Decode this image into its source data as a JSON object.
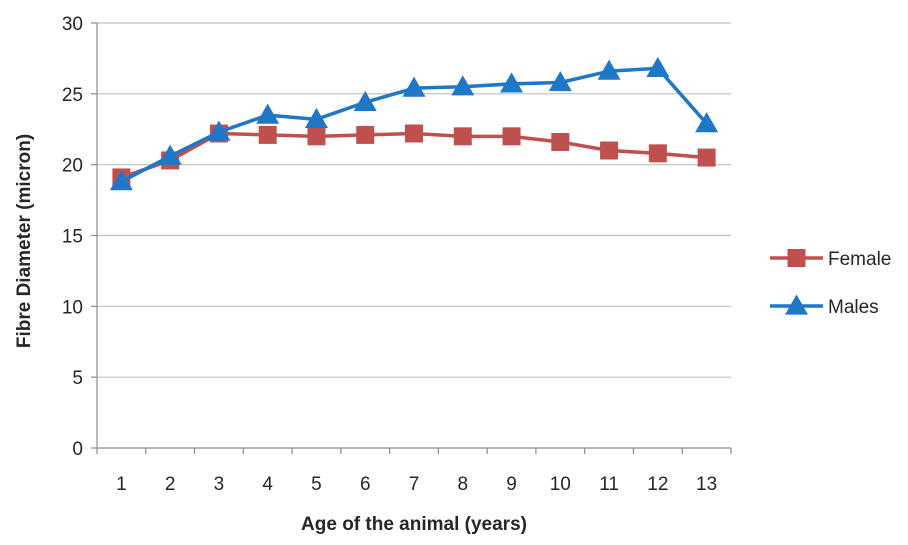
{
  "chart_data": {
    "type": "line",
    "title": "",
    "xlabel": "Age of the animal (years)",
    "ylabel": "Fibre Diameter  (micron)",
    "categories": [
      "1",
      "2",
      "3",
      "4",
      "5",
      "6",
      "7",
      "8",
      "9",
      "10",
      "11",
      "12",
      "13"
    ],
    "ylim": [
      0,
      30
    ],
    "yticks": [
      0,
      5,
      10,
      15,
      20,
      25,
      30
    ],
    "grid": "horizontal",
    "legend_position": "right",
    "series": [
      {
        "name": "Female",
        "marker": "square",
        "color": "#c0504d",
        "values": [
          19.1,
          20.3,
          22.2,
          22.1,
          22.0,
          22.1,
          22.2,
          22.0,
          22.0,
          21.6,
          21.0,
          20.8,
          20.5
        ]
      },
      {
        "name": "Males",
        "marker": "triangle",
        "color": "#1f77c8",
        "values": [
          18.8,
          20.6,
          22.3,
          23.5,
          23.2,
          24.4,
          25.4,
          25.5,
          25.7,
          25.8,
          26.6,
          26.8,
          22.9
        ]
      }
    ]
  }
}
